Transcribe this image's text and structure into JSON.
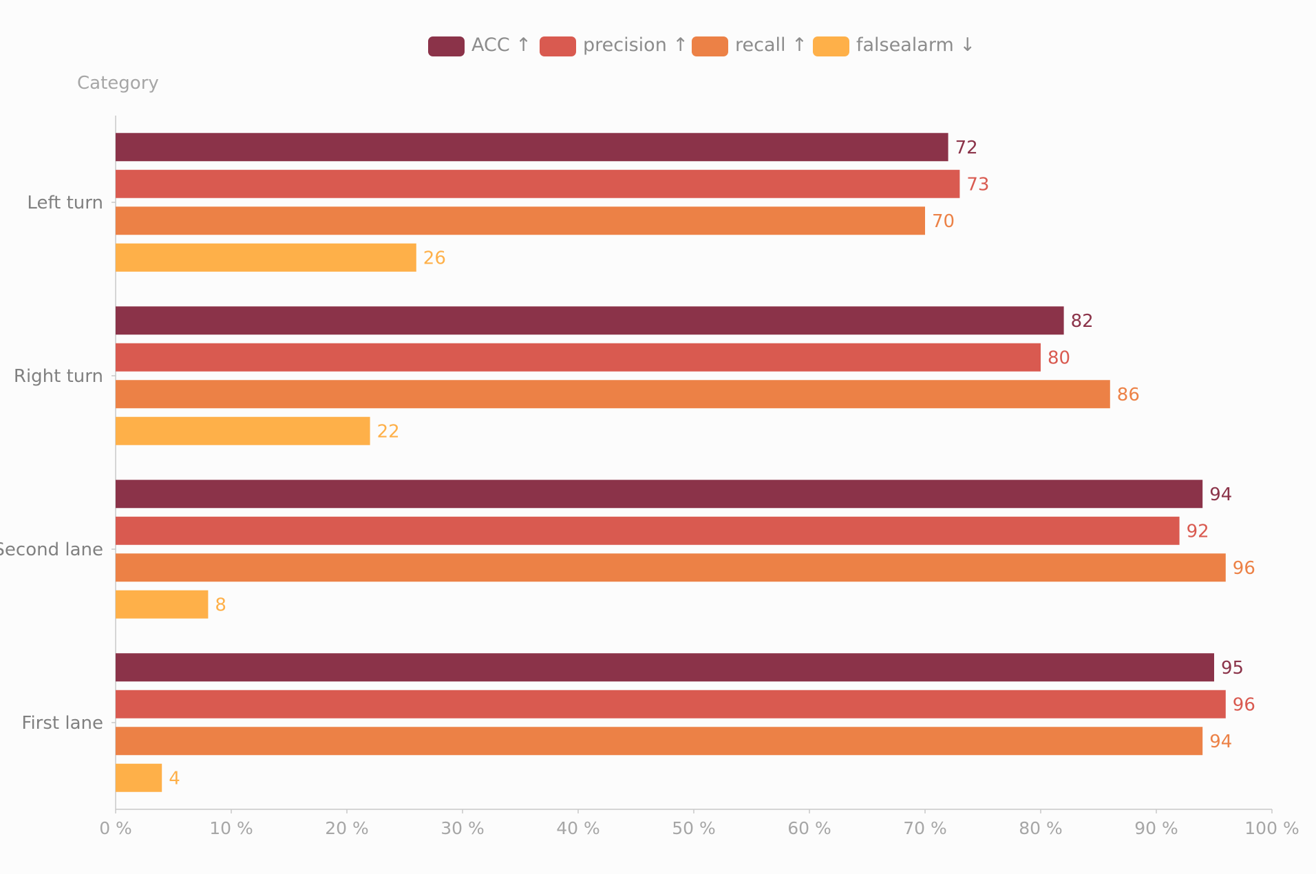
{
  "chart_data": {
    "type": "bar",
    "orientation": "horizontal",
    "y_axis_name": "Category",
    "categories": [
      "Left turn",
      "Right turn",
      "Second lane",
      "First lane"
    ],
    "series": [
      {
        "name": "ACC ↑",
        "color": "#8b3349",
        "values": [
          72,
          82,
          94,
          95
        ]
      },
      {
        "name": "precision ↑",
        "color": "#d95a50",
        "values": [
          73,
          80,
          92,
          96
        ]
      },
      {
        "name": "recall ↑",
        "color": "#ec8146",
        "values": [
          70,
          86,
          96,
          94
        ]
      },
      {
        "name": "falsealarm ↓",
        "color": "#feb049",
        "values": [
          26,
          22,
          8,
          4
        ]
      }
    ],
    "x_ticks": [
      "0 %",
      "10 %",
      "20 %",
      "30 %",
      "40 %",
      "50 %",
      "60 %",
      "70 %",
      "80 %",
      "90 %",
      "100 %"
    ],
    "xlim": [
      0,
      100
    ],
    "legend_position": "top-center",
    "grid": false
  }
}
